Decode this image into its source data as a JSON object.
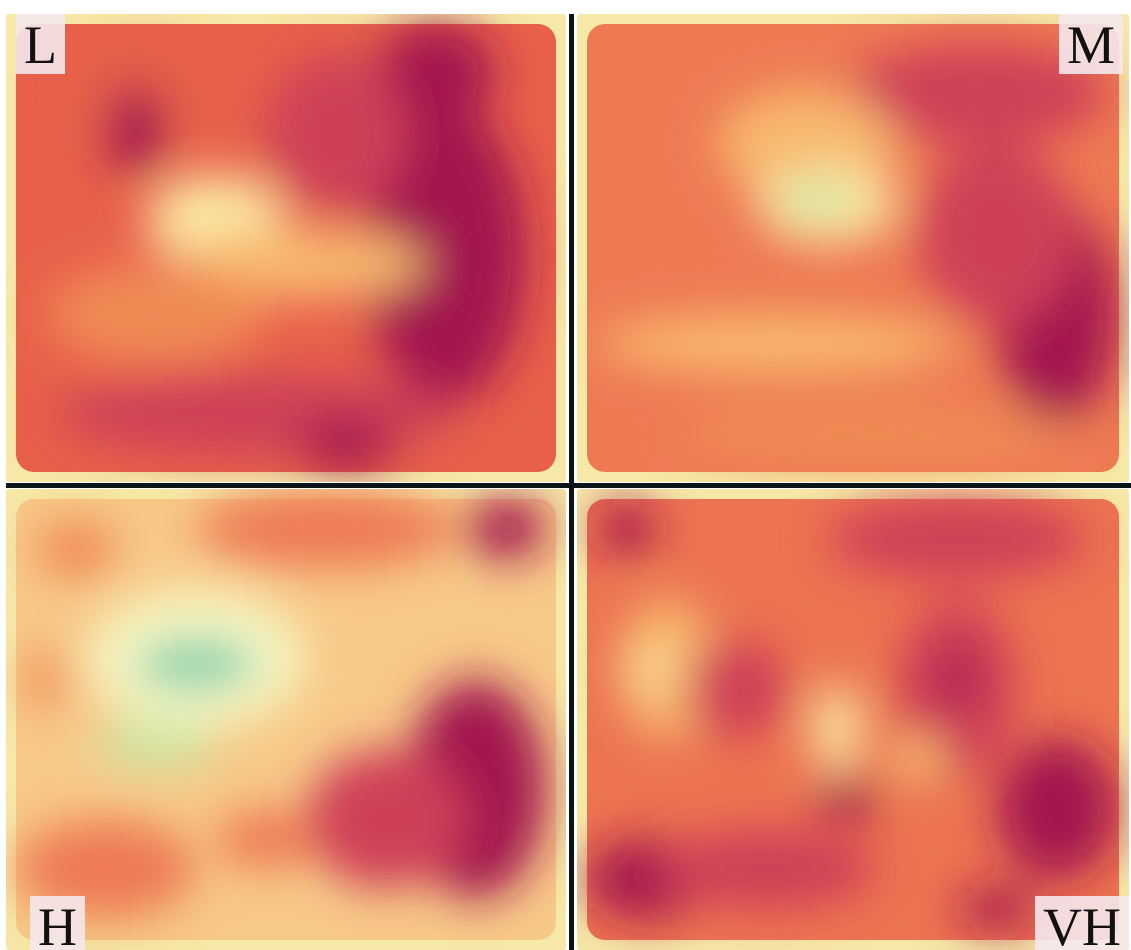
{
  "panels": [
    {
      "id": "L",
      "label": "L",
      "label_corner": "top-left",
      "colors": {
        "base": "#e8604a",
        "edge": "#f6e9a8"
      }
    },
    {
      "id": "M",
      "label": "M",
      "label_corner": "top-right",
      "colors": {
        "base": "#ee7a52",
        "edge": "#f6e9a8"
      }
    },
    {
      "id": "H",
      "label": "H",
      "label_corner": "bottom-left",
      "colors": {
        "base": "#f7c987",
        "edge": "#f6e9a8"
      }
    },
    {
      "id": "VH",
      "label": "VH",
      "label_corner": "bottom-right",
      "colors": {
        "base": "#ec7450",
        "edge": "#f6e9a8"
      }
    }
  ],
  "palette": {
    "dark_red": "#a3144f",
    "crimson": "#cf3f58",
    "red_orange": "#e8604a",
    "orange": "#f08a55",
    "light_orange": "#f8b86f",
    "pale_yellow": "#fbe6a0",
    "cream": "#f7f6c2",
    "light_green": "#cde5a4",
    "teal": "#7fcfae",
    "dark_teal": "#1e6b78",
    "divider": "#0b1416"
  }
}
